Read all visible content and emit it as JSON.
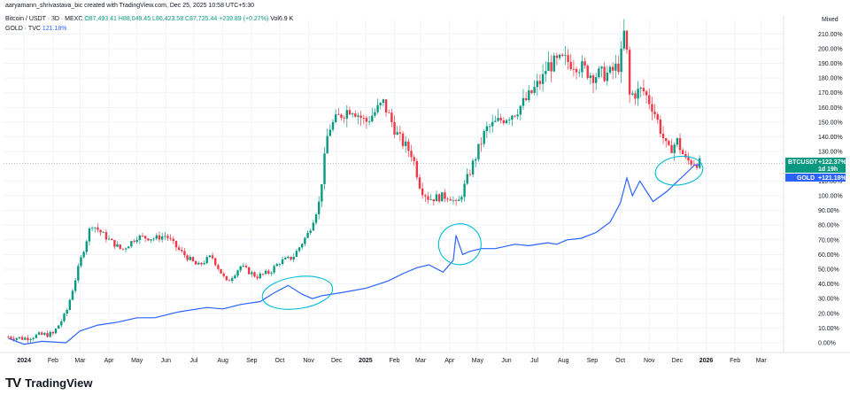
{
  "header": {
    "caption": "aaryamann_shrivastava_bic created with TradingView.com, Dec 25, 2025 10:58 UTC+5:30",
    "series_line": {
      "symbol": "Bitcoin / USDT · 3D · MEXC",
      "open": "O87,493.41",
      "high": "H88,049.45",
      "low": "L86,423.58",
      "close": "C87,725.44",
      "change": "+239.89 (+0.27%)",
      "volume": "Vol6.9 K"
    },
    "compare_line": {
      "symbol": "GOLD · TVC",
      "value": "121.18%"
    },
    "scale_mode": "Mixed"
  },
  "colors": {
    "up": "#089981",
    "down": "#f23645",
    "gold": "#2962ff",
    "annotation": "#00bcd4",
    "text": "#131722"
  },
  "badges": {
    "btc": {
      "symbol": "BTCUSDT",
      "value": "+122.37%",
      "countdown": "1d 19h"
    },
    "gold": {
      "symbol": "GOLD",
      "value": "+121.18%"
    }
  },
  "footer": {
    "logo_icon": "tradingview-logo-icon",
    "logo_text": "TV",
    "brand": "TradingView"
  },
  "chart_data": {
    "type": "line",
    "y_axis": {
      "ticks": [
        "210.00%",
        "200.00%",
        "190.00%",
        "180.00%",
        "170.00%",
        "160.00%",
        "150.00%",
        "140.00%",
        "130.00%",
        "110.00%",
        "100.00%",
        "90.00%",
        "80.00%",
        "70.00%",
        "60.00%",
        "50.00%",
        "40.00%",
        "30.00%",
        "20.00%",
        "10.00%",
        "0.00%"
      ],
      "range": [
        -3,
        215
      ]
    },
    "x_axis": {
      "ticks": [
        "2024",
        "Feb",
        "Mar",
        "Apr",
        "May",
        "Jun",
        "Jul",
        "Aug",
        "Sep",
        "Oct",
        "Nov",
        "Dec",
        "2025",
        "Feb",
        "Mar",
        "Apr",
        "May",
        "Jun",
        "Jul",
        "Aug",
        "Sep",
        "Oct",
        "Nov",
        "Dec",
        "2026",
        "Feb",
        "Mar"
      ],
      "bold": [
        "2024",
        "2025",
        "2026"
      ]
    },
    "series": [
      {
        "name": "BTCUSDT",
        "kind": "candlestick_close",
        "x": [
          "2023-12-15",
          "2024-01-01",
          "2024-01-15",
          "2024-02-01",
          "2024-02-15",
          "2024-03-01",
          "2024-03-13",
          "2024-04-01",
          "2024-04-15",
          "2024-05-01",
          "2024-05-20",
          "2024-06-01",
          "2024-06-15",
          "2024-07-05",
          "2024-07-20",
          "2024-08-05",
          "2024-08-20",
          "2024-09-06",
          "2024-09-20",
          "2024-10-01",
          "2024-10-15",
          "2024-11-01",
          "2024-11-12",
          "2024-11-22",
          "2024-12-05",
          "2024-12-17",
          "2025-01-01",
          "2025-01-20",
          "2025-02-05",
          "2025-02-20",
          "2025-03-01",
          "2025-03-10",
          "2025-04-01",
          "2025-04-09",
          "2025-04-25",
          "2025-05-10",
          "2025-05-22",
          "2025-06-10",
          "2025-06-22",
          "2025-07-10",
          "2025-07-14",
          "2025-08-01",
          "2025-08-14",
          "2025-09-01",
          "2025-09-20",
          "2025-10-01",
          "2025-10-06",
          "2025-10-11",
          "2025-10-25",
          "2025-11-05",
          "2025-11-21",
          "2025-12-01",
          "2025-12-10",
          "2025-12-25"
        ],
        "values": [
          4,
          3,
          5,
          6,
          20,
          55,
          81,
          70,
          63,
          72,
          71,
          73,
          63,
          52,
          59,
          41,
          52,
          45,
          48,
          55,
          58,
          75,
          95,
          145,
          155,
          160,
          150,
          163,
          140,
          128,
          105,
          98,
          100,
          93,
          120,
          145,
          150,
          157,
          165,
          180,
          188,
          192,
          190,
          182,
          183,
          190,
          215,
          168,
          172,
          160,
          130,
          137,
          124,
          122
        ]
      },
      {
        "name": "GOLD",
        "kind": "line",
        "x": [
          "2023-12-15",
          "2024-01-01",
          "2024-01-20",
          "2024-02-15",
          "2024-03-01",
          "2024-03-20",
          "2024-04-10",
          "2024-05-01",
          "2024-05-20",
          "2024-06-15",
          "2024-07-15",
          "2024-08-01",
          "2024-08-20",
          "2024-09-10",
          "2024-09-25",
          "2024-10-10",
          "2024-10-25",
          "2024-11-05",
          "2024-11-15",
          "2024-12-05",
          "2025-01-01",
          "2025-01-25",
          "2025-02-10",
          "2025-02-25",
          "2025-03-10",
          "2025-03-25",
          "2025-04-05",
          "2025-04-08",
          "2025-04-15",
          "2025-04-22",
          "2025-05-05",
          "2025-05-20",
          "2025-06-10",
          "2025-06-25",
          "2025-07-15",
          "2025-07-25",
          "2025-08-05",
          "2025-08-20",
          "2025-09-05",
          "2025-09-20",
          "2025-10-01",
          "2025-10-08",
          "2025-10-14",
          "2025-10-22",
          "2025-11-05",
          "2025-11-20",
          "2025-12-05",
          "2025-12-20",
          "2025-12-25"
        ],
        "values": [
          3,
          -1,
          1,
          0,
          8,
          12,
          14,
          17,
          17,
          21,
          24,
          23,
          26,
          28,
          34,
          39,
          33,
          30,
          32,
          34,
          37,
          42,
          47,
          51,
          53,
          48,
          56,
          73,
          60,
          62,
          64,
          64,
          67,
          66,
          68,
          67,
          70,
          71,
          75,
          82,
          95,
          112,
          100,
          110,
          96,
          103,
          112,
          121,
          121
        ]
      }
    ],
    "annotations": [
      "ellipse-oct-2024",
      "ellipse-apr-2025",
      "ellipse-dec-2025"
    ]
  }
}
